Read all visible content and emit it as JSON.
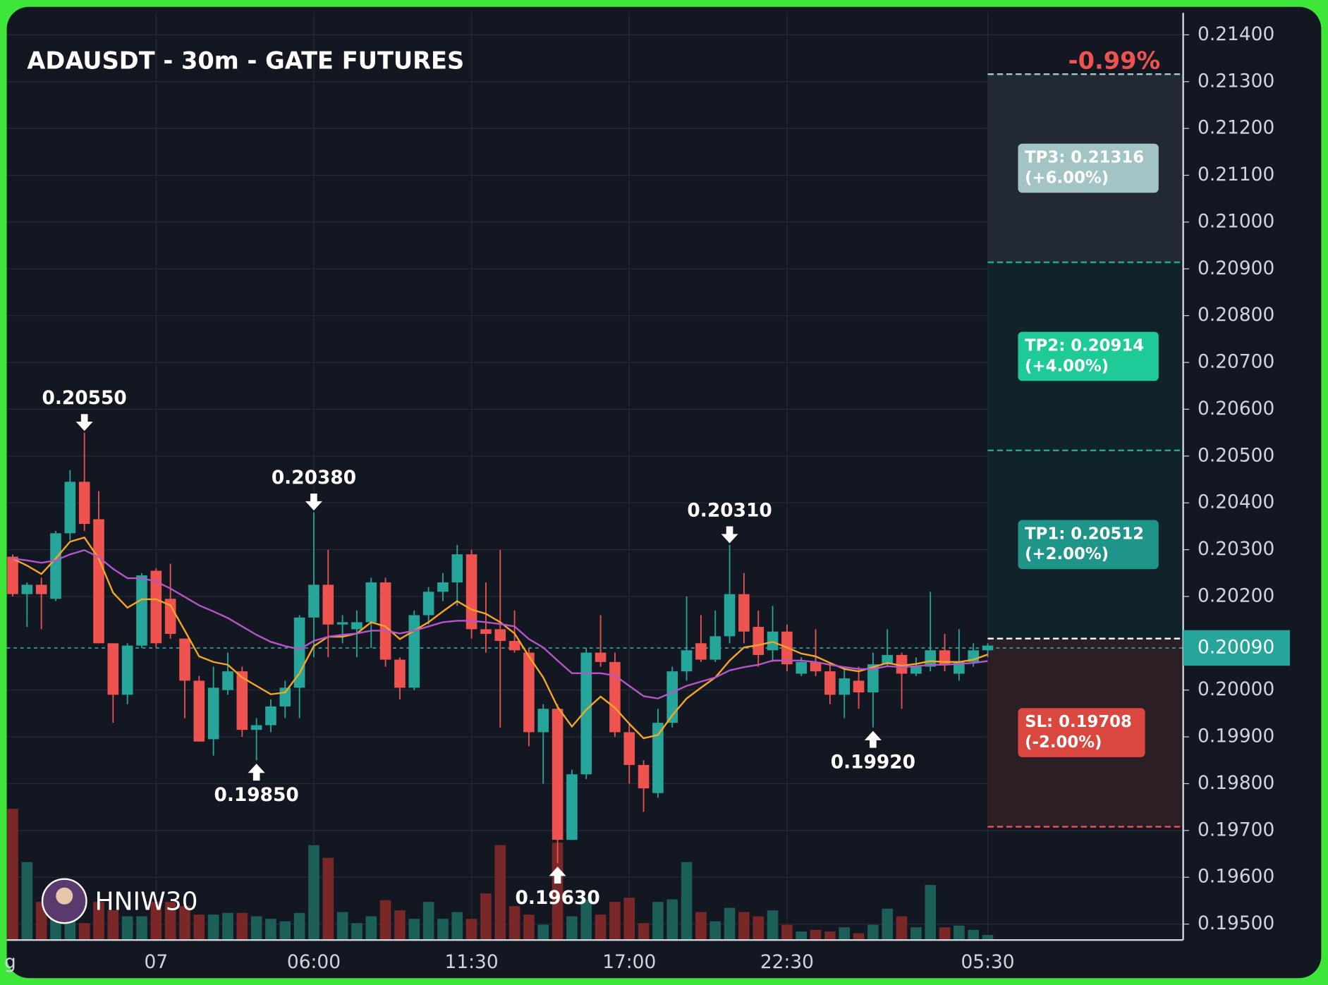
{
  "chart_data": {
    "type": "candlestick",
    "title": "ADAUSDT - 30m - GATE FUTURES",
    "change": "-0.99%",
    "watermark": "HNIW30",
    "categories": [
      "g",
      null,
      null,
      null,
      null,
      null,
      null,
      null,
      null,
      null,
      "07",
      null,
      null,
      null,
      null,
      null,
      null,
      null,
      null,
      null,
      null,
      "06:00",
      null,
      null,
      null,
      null,
      null,
      null,
      null,
      null,
      null,
      null,
      "11:30",
      null,
      null,
      null,
      null,
      null,
      null,
      null,
      null,
      null,
      null,
      "17:00",
      null,
      null,
      null,
      null,
      null,
      null,
      null,
      null,
      null,
      null,
      "22:30",
      null,
      null,
      null,
      null,
      null,
      null,
      null,
      null,
      null,
      null,
      null,
      null,
      null,
      "05:30"
    ],
    "open": [
      0.20285,
      0.20205,
      0.20225,
      0.20195,
      0.20335,
      0.20445,
      0.20365,
      0.201,
      0.1999,
      0.20095,
      0.20255,
      0.20195,
      0.2011,
      0.2002,
      0.19895,
      0.2,
      0.2004,
      0.19915,
      0.19925,
      0.19965,
      0.20005,
      0.20155,
      0.20225,
      0.2014,
      0.2013,
      0.20145,
      0.2023,
      0.20065,
      0.20005,
      0.2016,
      0.2021,
      0.2023,
      0.2029,
      0.2013,
      0.2013,
      0.20105,
      0.2008,
      0.1991,
      0.1996,
      0.1968,
      0.1982,
      0.2008,
      0.2006,
      0.1991,
      0.1984,
      0.1978,
      0.1993,
      0.2004,
      0.201,
      0.20065,
      0.20115,
      0.20205,
      0.20135,
      0.20085,
      0.20125,
      0.20035,
      0.2006,
      0.2004,
      0.1999,
      0.2002,
      0.19995,
      0.20055,
      0.20075,
      0.20035,
      0.2005,
      0.20085,
      0.20035,
      0.2006,
      0.20085
    ],
    "high": [
      0.2029,
      0.2023,
      0.2024,
      0.2034,
      0.2047,
      0.2055,
      0.20425,
      0.201,
      0.201,
      0.2025,
      0.2026,
      0.2027,
      0.2011,
      0.2003,
      0.2005,
      0.2008,
      0.2005,
      0.1994,
      0.1998,
      0.2002,
      0.2016,
      0.2038,
      0.203,
      0.2016,
      0.2017,
      0.2024,
      0.2024,
      0.2007,
      0.2017,
      0.2022,
      0.2025,
      0.2031,
      0.203,
      0.2023,
      0.203,
      0.2017,
      0.2009,
      0.1997,
      0.1997,
      0.1983,
      0.2009,
      0.2016,
      0.2008,
      0.1993,
      0.1985,
      0.1996,
      0.2005,
      0.202,
      0.2016,
      0.2017,
      0.2031,
      0.2025,
      0.2017,
      0.2018,
      0.2014,
      0.2007,
      0.2013,
      0.2006,
      0.2005,
      0.2005,
      0.2008,
      0.2013,
      0.2008,
      0.2007,
      0.2021,
      0.2012,
      0.2013,
      0.201,
      0.201
    ],
    "low": [
      0.202,
      0.20135,
      0.2013,
      0.2019,
      0.2032,
      0.2034,
      0.201,
      0.1993,
      0.1997,
      0.2009,
      0.2009,
      0.2011,
      0.1994,
      0.1989,
      0.1986,
      0.1999,
      0.199,
      0.1985,
      0.1991,
      0.1994,
      0.1994,
      0.2007,
      0.2007,
      0.201,
      0.2007,
      0.2009,
      0.2005,
      0.1998,
      0.2,
      0.2014,
      0.2019,
      0.2018,
      0.2011,
      0.2008,
      0.1992,
      0.2008,
      0.1988,
      0.198,
      0.1963,
      0.1968,
      0.1981,
      0.2005,
      0.199,
      0.198,
      0.1974,
      0.1977,
      0.1992,
      0.2002,
      0.2006,
      0.2006,
      0.201,
      0.201,
      0.2005,
      0.2006,
      0.2004,
      0.2003,
      0.2003,
      0.1997,
      0.1994,
      0.1996,
      0.1992,
      0.2005,
      0.1996,
      0.2003,
      0.2004,
      0.2004,
      0.2002,
      0.2005,
      0.2007
    ],
    "close": [
      0.20205,
      0.20225,
      0.20205,
      0.20335,
      0.20445,
      0.20355,
      0.201,
      0.1999,
      0.20095,
      0.20245,
      0.201,
      0.2012,
      0.2002,
      0.1989,
      0.20005,
      0.2004,
      0.19915,
      0.19925,
      0.19965,
      0.20005,
      0.20155,
      0.20225,
      0.2014,
      0.20145,
      0.20145,
      0.2023,
      0.20065,
      0.20005,
      0.2016,
      0.2021,
      0.2023,
      0.2029,
      0.2013,
      0.2012,
      0.20105,
      0.20085,
      0.1991,
      0.1996,
      0.1968,
      0.1982,
      0.2008,
      0.2006,
      0.1991,
      0.1984,
      0.1979,
      0.1993,
      0.2004,
      0.20085,
      0.20065,
      0.20115,
      0.20205,
      0.20125,
      0.20075,
      0.20125,
      0.20055,
      0.2006,
      0.2004,
      0.1999,
      0.20025,
      0.19995,
      0.20055,
      0.20075,
      0.20035,
      0.2005,
      0.20085,
      0.20055,
      0.2006,
      0.20085,
      0.20095
    ],
    "volume": [
      155,
      92,
      45,
      60,
      40,
      20,
      45,
      35,
      28,
      28,
      45,
      45,
      40,
      30,
      30,
      32,
      32,
      28,
      25,
      22,
      32,
      112,
      97,
      33,
      20,
      28,
      47,
      35,
      25,
      45,
      25,
      33,
      25,
      55,
      112,
      40,
      30,
      18,
      115,
      28,
      48,
      30,
      45,
      50,
      20,
      45,
      48,
      92,
      33,
      22,
      38,
      33,
      28,
      35,
      18,
      10,
      12,
      10,
      15,
      8,
      18,
      37,
      28,
      15,
      65,
      15,
      17,
      12,
      6
    ],
    "series": [
      {
        "color": "#f5a623",
        "values": [
          0.20281,
          0.20266,
          0.20248,
          0.20281,
          0.20317,
          0.20326,
          0.20281,
          0.20208,
          0.20176,
          0.20194,
          0.20194,
          0.20181,
          0.20127,
          0.20072,
          0.2006,
          0.20054,
          0.20027,
          0.20009,
          0.19991,
          0.19995,
          0.20036,
          0.20094,
          0.20114,
          0.20114,
          0.20121,
          0.20145,
          0.20136,
          0.20109,
          0.20127,
          0.20145,
          0.20168,
          0.2019,
          0.20172,
          0.20163,
          0.20145,
          0.20121,
          0.20072,
          0.20027,
          0.19964,
          0.19922,
          0.19958,
          0.19986,
          0.19962,
          0.19928,
          0.19897,
          0.19904,
          0.19946,
          0.19982,
          0.20005,
          0.20027,
          0.20063,
          0.20091,
          0.20096,
          0.20103,
          0.20091,
          0.20078,
          0.20072,
          0.20058,
          0.20045,
          0.2004,
          0.20049,
          0.20058,
          0.20052,
          0.20056,
          0.20062,
          0.2006,
          0.2006,
          0.20065,
          0.20076
        ]
      },
      {
        "color": "#b455c8",
        "values": [
          0.20281,
          0.20277,
          0.20272,
          0.20277,
          0.2029,
          0.20299,
          0.20284,
          0.20259,
          0.20239,
          0.20239,
          0.20232,
          0.20217,
          0.20199,
          0.20181,
          0.20168,
          0.20154,
          0.20136,
          0.20118,
          0.20103,
          0.20094,
          0.20087,
          0.20105,
          0.20114,
          0.20118,
          0.20121,
          0.20127,
          0.20127,
          0.20121,
          0.20127,
          0.20136,
          0.20145,
          0.20148,
          0.20148,
          0.20145,
          0.20141,
          0.20136,
          0.20109,
          0.20091,
          0.20063,
          0.20036,
          0.20036,
          0.20036,
          0.20031,
          0.20009,
          0.19987,
          0.19982,
          0.19995,
          0.20009,
          0.20018,
          0.20027,
          0.20042,
          0.20049,
          0.20054,
          0.20063,
          0.20063,
          0.20063,
          0.2006,
          0.20054,
          0.20049,
          0.20045,
          0.20045,
          0.20051,
          0.20049,
          0.20051,
          0.20054,
          0.20054,
          0.20056,
          0.20058,
          0.20062
        ]
      }
    ],
    "up_color": "#26a69a",
    "down_color": "#ef5350",
    "up_volume_color": "#1b5f58",
    "down_volume_color": "#7a2727",
    "ylim": [
      0.19466,
      0.21447
    ],
    "yticks": [
      {
        "value": 0.214,
        "label": "0.21400"
      },
      {
        "value": 0.213,
        "label": "0.21300"
      },
      {
        "value": 0.212,
        "label": "0.21200"
      },
      {
        "value": 0.211,
        "label": "0.21100"
      },
      {
        "value": 0.21,
        "label": "0.21000"
      },
      {
        "value": 0.209,
        "label": "0.20900"
      },
      {
        "value": 0.208,
        "label": "0.20800"
      },
      {
        "value": 0.207,
        "label": "0.20700"
      },
      {
        "value": 0.206,
        "label": "0.20600"
      },
      {
        "value": 0.205,
        "label": "0.20500"
      },
      {
        "value": 0.204,
        "label": "0.20400"
      },
      {
        "value": 0.203,
        "label": "0.20300"
      },
      {
        "value": 0.202,
        "label": "0.20200"
      },
      {
        "value": 0.2,
        "label": "0.20000"
      },
      {
        "value": 0.199,
        "label": "0.19900"
      },
      {
        "value": 0.198,
        "label": "0.19800"
      },
      {
        "value": 0.197,
        "label": "0.19700"
      },
      {
        "value": 0.196,
        "label": "0.19600"
      },
      {
        "value": 0.195,
        "label": "0.19500"
      }
    ],
    "grid": true,
    "current_price": {
      "value": 0.2009,
      "label": "0.20090"
    },
    "entry": 0.2011,
    "targets": [
      {
        "label": "TP3: 0.21316",
        "change": "(+6.00%)",
        "value": 0.21316,
        "color": "#a3c4c4"
      },
      {
        "label": "TP2: 0.20914",
        "change": "(+4.00%)",
        "value": 0.20914,
        "color": "#1ecb98"
      },
      {
        "label": "TP1: 0.20512",
        "change": "(+2.00%)",
        "value": 0.20512,
        "color": "#1f9488"
      }
    ],
    "stop": {
      "label": "SL: 0.19708",
      "change": "(-2.00%)",
      "value": 0.19708,
      "color": "#d9473f"
    },
    "annotations": [
      {
        "index": 5,
        "kind": "high",
        "value": 0.2055,
        "label": "0.20550"
      },
      {
        "index": 21,
        "kind": "high",
        "value": 0.2038,
        "label": "0.20380"
      },
      {
        "index": 50,
        "kind": "high",
        "value": 0.2031,
        "label": "0.20310"
      },
      {
        "index": 17,
        "kind": "low",
        "value": 0.1985,
        "label": "0.19850"
      },
      {
        "index": 38,
        "kind": "low",
        "value": 0.1963,
        "label": "0.19630"
      },
      {
        "index": 60,
        "kind": "low",
        "value": 0.1992,
        "label": "0.19920"
      }
    ]
  }
}
